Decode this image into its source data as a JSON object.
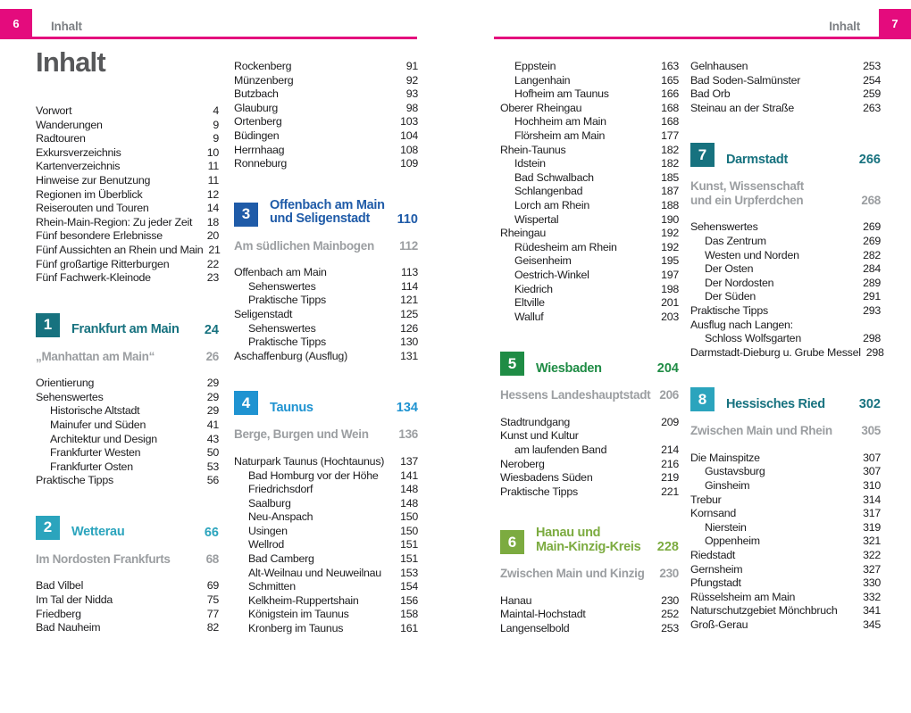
{
  "palette": {
    "magenta": "#e40b7d",
    "header_gray": "#7d8084",
    "title_gray": "#57585a",
    "body_text": "#1c1c1e",
    "sub_gray": "#9b9ea1",
    "teal": "#17727f",
    "cyan": "#2ba4bd",
    "blue": "#1f5ba8",
    "light_blue": "#1f93d1",
    "green": "#1f8c45",
    "light_green": "#7cab40"
  },
  "pages": [
    {
      "page_number": "6",
      "running_header": "Inhalt",
      "title": "Inhalt",
      "columns": [
        [
          {
            "type": "toc",
            "label": "Vorwort",
            "page": "4",
            "indent": 0
          },
          {
            "type": "toc",
            "label": "Wanderungen",
            "page": "9",
            "indent": 0
          },
          {
            "type": "toc",
            "label": "Radtouren",
            "page": "9",
            "indent": 0
          },
          {
            "type": "toc",
            "label": "Exkursverzeichnis",
            "page": "10",
            "indent": 0
          },
          {
            "type": "toc",
            "label": "Kartenverzeichnis",
            "page": "11",
            "indent": 0
          },
          {
            "type": "toc",
            "label": "Hinweise zur Benutzung",
            "page": "11",
            "indent": 0
          },
          {
            "type": "toc",
            "label": "Regionen im Überblick",
            "page": "12",
            "indent": 0
          },
          {
            "type": "toc",
            "label": "Reiserouten und Touren",
            "page": "14",
            "indent": 0
          },
          {
            "type": "toc",
            "label": "Rhein-Main-Region: Zu jeder Zeit",
            "page": "18",
            "indent": 0
          },
          {
            "type": "toc",
            "label": "Fünf besondere Erlebnisse",
            "page": "20",
            "indent": 0
          },
          {
            "type": "toc",
            "label": "Fünf Aussichten an Rhein und Main",
            "page": "21",
            "indent": 0
          },
          {
            "type": "toc",
            "label": "Fünf großartige Ritterburgen",
            "page": "22",
            "indent": 0
          },
          {
            "type": "toc",
            "label": "Fünf Fachwerk-Kleinode",
            "page": "23",
            "indent": 0
          },
          {
            "type": "chapter",
            "num": "1",
            "lines": [
              "Frankfurt am Main"
            ],
            "page": "24",
            "box": "#17727f",
            "text": "#17727f"
          },
          {
            "type": "sub",
            "lines": [
              "„Manhattan am Main“"
            ],
            "page": "26"
          },
          {
            "type": "toc",
            "label": "Orientierung",
            "page": "29",
            "indent": 0
          },
          {
            "type": "toc",
            "label": "Sehenswertes",
            "page": "29",
            "indent": 0
          },
          {
            "type": "toc",
            "label": "Historische Altstadt",
            "page": "29",
            "indent": 1
          },
          {
            "type": "toc",
            "label": "Mainufer und Süden",
            "page": "41",
            "indent": 1
          },
          {
            "type": "toc",
            "label": "Architektur und Design",
            "page": "43",
            "indent": 1
          },
          {
            "type": "toc",
            "label": "Frankfurter Westen",
            "page": "50",
            "indent": 1
          },
          {
            "type": "toc",
            "label": "Frankfurter Osten",
            "page": "53",
            "indent": 1
          },
          {
            "type": "toc",
            "label": "Praktische Tipps",
            "page": "56",
            "indent": 0
          },
          {
            "type": "chapter",
            "num": "2",
            "lines": [
              "Wetterau"
            ],
            "page": "66",
            "box": "#2ba4bd",
            "text": "#2ba4bd"
          },
          {
            "type": "sub",
            "lines": [
              "Im Nordosten Frankfurts"
            ],
            "page": "68"
          },
          {
            "type": "toc",
            "label": "Bad Vilbel",
            "page": "69",
            "indent": 0
          },
          {
            "type": "toc",
            "label": "Im Tal der Nidda",
            "page": "75",
            "indent": 0
          },
          {
            "type": "toc",
            "label": "Friedberg",
            "page": "77",
            "indent": 0
          },
          {
            "type": "toc",
            "label": "Bad Nauheim",
            "page": "82",
            "indent": 0
          }
        ],
        [
          {
            "type": "toc",
            "label": "Rockenberg",
            "page": "91",
            "indent": 0
          },
          {
            "type": "toc",
            "label": "Münzenberg",
            "page": "92",
            "indent": 0
          },
          {
            "type": "toc",
            "label": "Butzbach",
            "page": "93",
            "indent": 0
          },
          {
            "type": "toc",
            "label": "Glauburg",
            "page": "98",
            "indent": 0
          },
          {
            "type": "toc",
            "label": "Ortenberg",
            "page": "103",
            "indent": 0
          },
          {
            "type": "toc",
            "label": "Büdingen",
            "page": "104",
            "indent": 0
          },
          {
            "type": "toc",
            "label": "Herrnhaag",
            "page": "108",
            "indent": 0
          },
          {
            "type": "toc",
            "label": "Ronneburg",
            "page": "109",
            "indent": 0
          },
          {
            "type": "chapter",
            "num": "3",
            "lines": [
              "Offenbach am Main",
              "und Seligenstadt"
            ],
            "page": "110",
            "box": "#1f5ba8",
            "text": "#1f5ba8"
          },
          {
            "type": "sub",
            "lines": [
              "Am südlichen Mainbogen"
            ],
            "page": "112"
          },
          {
            "type": "toc",
            "label": "Offenbach am Main",
            "page": "113",
            "indent": 0
          },
          {
            "type": "toc",
            "label": "Sehenswertes",
            "page": "114",
            "indent": 1
          },
          {
            "type": "toc",
            "label": "Praktische Tipps",
            "page": "121",
            "indent": 1
          },
          {
            "type": "toc",
            "label": "Seligenstadt",
            "page": "125",
            "indent": 0
          },
          {
            "type": "toc",
            "label": "Sehenswertes",
            "page": "126",
            "indent": 1
          },
          {
            "type": "toc",
            "label": "Praktische Tipps",
            "page": "130",
            "indent": 1
          },
          {
            "type": "toc",
            "label": "Aschaffenburg (Ausflug)",
            "page": "131",
            "indent": 0
          },
          {
            "type": "chapter",
            "num": "4",
            "lines": [
              "Taunus"
            ],
            "page": "134",
            "box": "#1f93d1",
            "text": "#1f93d1"
          },
          {
            "type": "sub",
            "lines": [
              "Berge, Burgen und Wein"
            ],
            "page": "136"
          },
          {
            "type": "toc",
            "label": "Naturpark Taunus (Hochtaunus)",
            "page": "137",
            "indent": 0
          },
          {
            "type": "toc",
            "label": "Bad Homburg vor der Höhe",
            "page": "141",
            "indent": 1
          },
          {
            "type": "toc",
            "label": "Friedrichsdorf",
            "page": "148",
            "indent": 1
          },
          {
            "type": "toc",
            "label": "Saalburg",
            "page": "148",
            "indent": 1
          },
          {
            "type": "toc",
            "label": "Neu-Anspach",
            "page": "150",
            "indent": 1
          },
          {
            "type": "toc",
            "label": "Usingen",
            "page": "150",
            "indent": 1
          },
          {
            "type": "toc",
            "label": "Wellrod",
            "page": "151",
            "indent": 1
          },
          {
            "type": "toc",
            "label": "Bad Camberg",
            "page": "151",
            "indent": 1
          },
          {
            "type": "toc",
            "label": "Alt-Weilnau und Neuweilnau",
            "page": "153",
            "indent": 1
          },
          {
            "type": "toc",
            "label": "Schmitten",
            "page": "154",
            "indent": 1
          },
          {
            "type": "toc",
            "label": "Kelkheim-Ruppertshain",
            "page": "156",
            "indent": 1
          },
          {
            "type": "toc",
            "label": "Königstein im Taunus",
            "page": "158",
            "indent": 1
          },
          {
            "type": "toc",
            "label": "Kronberg im Taunus",
            "page": "161",
            "indent": 1
          }
        ]
      ]
    },
    {
      "page_number": "7",
      "running_header": "Inhalt",
      "title": "",
      "columns": [
        [
          {
            "type": "toc",
            "label": "Eppstein",
            "page": "163",
            "indent": 1
          },
          {
            "type": "toc",
            "label": "Langenhain",
            "page": "165",
            "indent": 1
          },
          {
            "type": "toc",
            "label": "Hofheim am Taunus",
            "page": "166",
            "indent": 1
          },
          {
            "type": "toc",
            "label": "Oberer Rheingau",
            "page": "168",
            "indent": 0
          },
          {
            "type": "toc",
            "label": "Hochheim am Main",
            "page": "168",
            "indent": 1
          },
          {
            "type": "toc",
            "label": "Flörsheim am Main",
            "page": "177",
            "indent": 1
          },
          {
            "type": "toc",
            "label": "Rhein-Taunus",
            "page": "182",
            "indent": 0
          },
          {
            "type": "toc",
            "label": "Idstein",
            "page": "182",
            "indent": 1
          },
          {
            "type": "toc",
            "label": "Bad Schwalbach",
            "page": "185",
            "indent": 1
          },
          {
            "type": "toc",
            "label": "Schlangenbad",
            "page": "187",
            "indent": 1
          },
          {
            "type": "toc",
            "label": "Lorch am Rhein",
            "page": "188",
            "indent": 1
          },
          {
            "type": "toc",
            "label": "Wispertal",
            "page": "190",
            "indent": 1
          },
          {
            "type": "toc",
            "label": "Rheingau",
            "page": "192",
            "indent": 0
          },
          {
            "type": "toc",
            "label": "Rüdesheim am Rhein",
            "page": "192",
            "indent": 1
          },
          {
            "type": "toc",
            "label": "Geisenheim",
            "page": "195",
            "indent": 1
          },
          {
            "type": "toc",
            "label": "Oestrich-Winkel",
            "page": "197",
            "indent": 1
          },
          {
            "type": "toc",
            "label": "Kiedrich",
            "page": "198",
            "indent": 1
          },
          {
            "type": "toc",
            "label": "Eltville",
            "page": "201",
            "indent": 1
          },
          {
            "type": "toc",
            "label": "Walluf",
            "page": "203",
            "indent": 1
          },
          {
            "type": "chapter",
            "num": "5",
            "lines": [
              "Wiesbaden"
            ],
            "page": "204",
            "box": "#1f8c45",
            "text": "#1f8c45"
          },
          {
            "type": "sub",
            "lines": [
              "Hessens Landeshauptstadt"
            ],
            "page": "206"
          },
          {
            "type": "toc",
            "label": "Stadtrundgang",
            "page": "209",
            "indent": 0
          },
          {
            "type": "toc",
            "label": "Kunst und Kultur",
            "page": "",
            "indent": 0
          },
          {
            "type": "toc",
            "label": "am laufenden Band",
            "page": "214",
            "indent": 1
          },
          {
            "type": "toc",
            "label": "Neroberg",
            "page": "216",
            "indent": 0
          },
          {
            "type": "toc",
            "label": "Wiesbadens Süden",
            "page": "219",
            "indent": 0
          },
          {
            "type": "toc",
            "label": "Praktische Tipps",
            "page": "221",
            "indent": 0
          },
          {
            "type": "chapter",
            "num": "6",
            "lines": [
              "Hanau und",
              "Main-Kinzig-Kreis"
            ],
            "page": "228",
            "box": "#7cab40",
            "text": "#7cab40"
          },
          {
            "type": "sub",
            "lines": [
              "Zwischen Main und Kinzig"
            ],
            "page": "230"
          },
          {
            "type": "toc",
            "label": "Hanau",
            "page": "230",
            "indent": 0
          },
          {
            "type": "toc",
            "label": "Maintal-Hochstadt",
            "page": "252",
            "indent": 0
          },
          {
            "type": "toc",
            "label": "Langenselbold",
            "page": "253",
            "indent": 0
          }
        ],
        [
          {
            "type": "toc",
            "label": "Gelnhausen",
            "page": "253",
            "indent": 0
          },
          {
            "type": "toc",
            "label": "Bad Soden-Salmünster",
            "page": "254",
            "indent": 0
          },
          {
            "type": "toc",
            "label": "Bad Orb",
            "page": "259",
            "indent": 0
          },
          {
            "type": "toc",
            "label": "Steinau an der Straße",
            "page": "263",
            "indent": 0
          },
          {
            "type": "chapter",
            "num": "7",
            "lines": [
              "Darmstadt"
            ],
            "page": "266",
            "box": "#17727f",
            "text": "#17727f"
          },
          {
            "type": "sub",
            "lines": [
              "Kunst, Wissenschaft",
              "und ein Urpferdchen"
            ],
            "page": "268"
          },
          {
            "type": "toc",
            "label": "Sehenswertes",
            "page": "269",
            "indent": 0
          },
          {
            "type": "toc",
            "label": "Das Zentrum",
            "page": "269",
            "indent": 1
          },
          {
            "type": "toc",
            "label": "Westen und Norden",
            "page": "282",
            "indent": 1
          },
          {
            "type": "toc",
            "label": "Der Osten",
            "page": "284",
            "indent": 1
          },
          {
            "type": "toc",
            "label": "Der Nordosten",
            "page": "289",
            "indent": 1
          },
          {
            "type": "toc",
            "label": "Der Süden",
            "page": "291",
            "indent": 1
          },
          {
            "type": "toc",
            "label": "Praktische Tipps",
            "page": "293",
            "indent": 0
          },
          {
            "type": "toc",
            "label": "Ausflug nach Langen:",
            "page": "",
            "indent": 0
          },
          {
            "type": "toc",
            "label": "Schloss Wolfsgarten",
            "page": "298",
            "indent": 1
          },
          {
            "type": "toc",
            "label": "Darmstadt-Dieburg u. Grube Messel",
            "page": "298",
            "indent": 0
          },
          {
            "type": "chapter",
            "num": "8",
            "lines": [
              "Hessisches Ried"
            ],
            "page": "302",
            "box": "#2ba4bd",
            "text": "#17727f"
          },
          {
            "type": "sub",
            "lines": [
              "Zwischen Main und Rhein"
            ],
            "page": "305"
          },
          {
            "type": "toc",
            "label": "Die Mainspitze",
            "page": "307",
            "indent": 0
          },
          {
            "type": "toc",
            "label": "Gustavsburg",
            "page": "307",
            "indent": 1
          },
          {
            "type": "toc",
            "label": "Ginsheim",
            "page": "310",
            "indent": 1
          },
          {
            "type": "toc",
            "label": "Trebur",
            "page": "314",
            "indent": 0
          },
          {
            "type": "toc",
            "label": "Kornsand",
            "page": "317",
            "indent": 0
          },
          {
            "type": "toc",
            "label": "Nierstein",
            "page": "319",
            "indent": 1
          },
          {
            "type": "toc",
            "label": "Oppenheim",
            "page": "321",
            "indent": 1
          },
          {
            "type": "toc",
            "label": "Riedstadt",
            "page": "322",
            "indent": 0
          },
          {
            "type": "toc",
            "label": "Gernsheim",
            "page": "327",
            "indent": 0
          },
          {
            "type": "toc",
            "label": "Pfungstadt",
            "page": "330",
            "indent": 0
          },
          {
            "type": "toc",
            "label": "Rüsselsheim am Main",
            "page": "332",
            "indent": 0
          },
          {
            "type": "toc",
            "label": "Naturschutzgebiet Mönchbruch",
            "page": "341",
            "indent": 0
          },
          {
            "type": "toc",
            "label": "Groß-Gerau",
            "page": "345",
            "indent": 0
          }
        ]
      ]
    }
  ]
}
